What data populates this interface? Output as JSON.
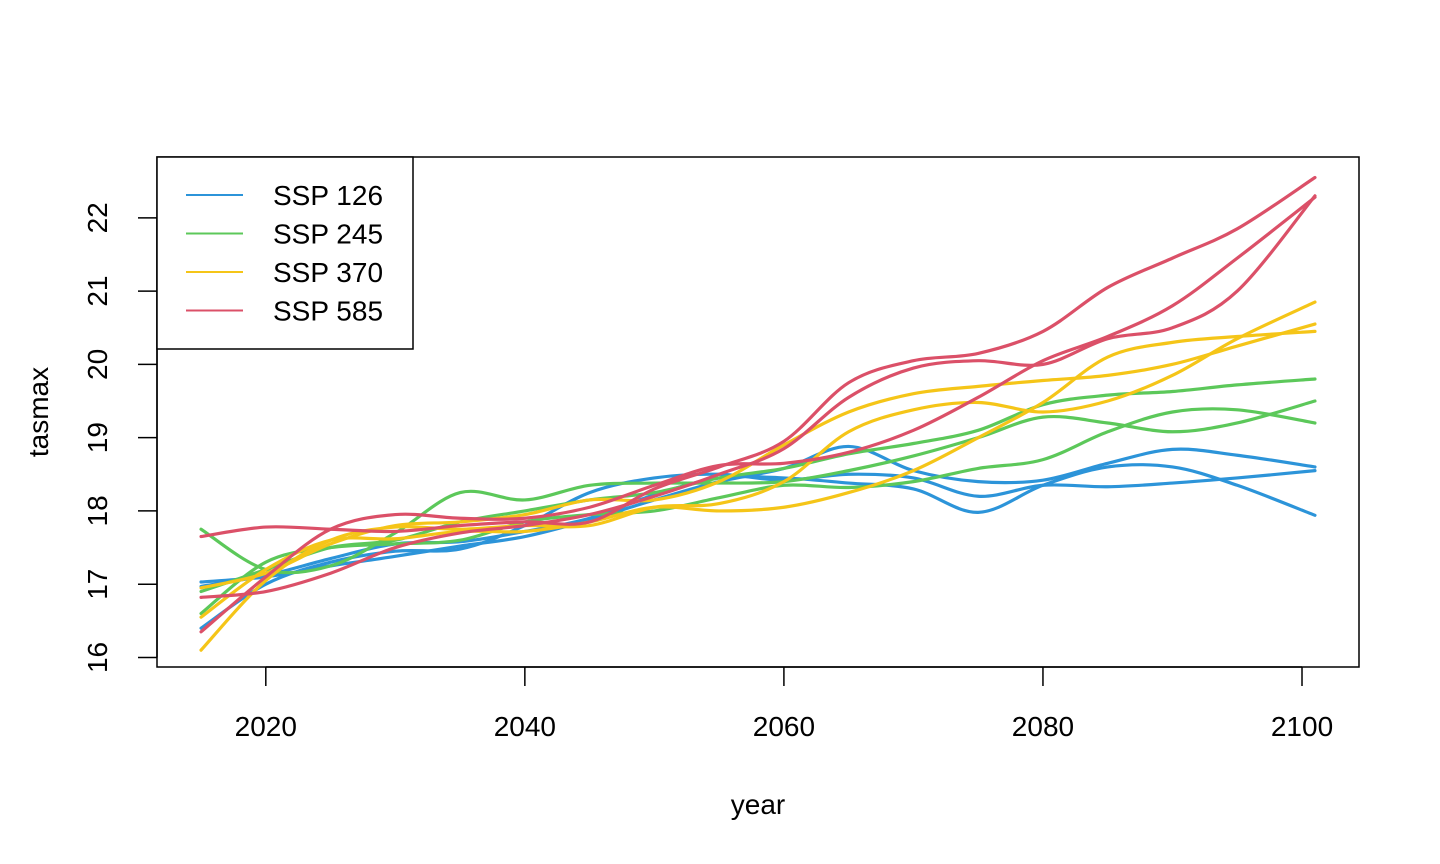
{
  "chart_data": {
    "type": "line",
    "title": "",
    "xlabel": "year",
    "ylabel": "tasmax",
    "xlim": [
      2011.6,
      2104.4
    ],
    "ylim": [
      15.87,
      22.83
    ],
    "x_ticks": [
      2020,
      2040,
      2060,
      2080,
      2100
    ],
    "y_ticks": [
      16,
      17,
      18,
      19,
      20,
      21,
      22
    ],
    "grid": false,
    "legend": {
      "position": "top-left",
      "entries": [
        {
          "label": "SSP 126",
          "color": "#2c94d9"
        },
        {
          "label": "SSP 245",
          "color": "#5cc85a"
        },
        {
          "label": "SSP 370",
          "color": "#f5c518"
        },
        {
          "label": "SSP 585",
          "color": "#db5068"
        }
      ]
    },
    "x": [
      2015,
      2020,
      2025,
      2030,
      2035,
      2040,
      2045,
      2050,
      2055,
      2060,
      2065,
      2070,
      2075,
      2080,
      2085,
      2090,
      2095,
      2101
    ],
    "series": [
      {
        "group": "SSP 126",
        "color": "#2c94d9",
        "values": [
          17.03,
          17.1,
          17.25,
          17.38,
          17.52,
          17.65,
          17.88,
          18.15,
          18.4,
          18.58,
          18.88,
          18.55,
          18.4,
          18.42,
          18.65,
          18.84,
          18.76,
          18.6
        ]
      },
      {
        "group": "SSP 126",
        "color": "#2c94d9",
        "values": [
          16.97,
          17.12,
          17.35,
          17.55,
          17.58,
          17.72,
          17.9,
          18.22,
          18.45,
          18.45,
          18.38,
          18.3,
          17.98,
          18.35,
          18.6,
          18.6,
          18.35,
          17.94
        ]
      },
      {
        "group": "SSP 126",
        "color": "#2c94d9",
        "values": [
          16.4,
          17.0,
          17.3,
          17.45,
          17.48,
          17.8,
          18.25,
          18.45,
          18.5,
          18.42,
          18.5,
          18.45,
          18.2,
          18.35,
          18.33,
          18.38,
          18.45,
          18.55
        ]
      },
      {
        "group": "SSP 245",
        "color": "#5cc85a",
        "values": [
          17.75,
          17.2,
          17.25,
          17.7,
          18.25,
          18.15,
          18.35,
          18.38,
          18.38,
          18.4,
          18.55,
          18.75,
          19.0,
          19.28,
          19.2,
          19.08,
          19.2,
          19.5
        ]
      },
      {
        "group": "SSP 245",
        "color": "#5cc85a",
        "values": [
          16.9,
          17.2,
          17.5,
          17.6,
          17.85,
          18.0,
          18.15,
          18.25,
          18.45,
          18.58,
          18.78,
          18.92,
          19.1,
          19.45,
          19.58,
          19.63,
          19.72,
          19.8
        ]
      },
      {
        "group": "SSP 245",
        "color": "#5cc85a",
        "values": [
          16.6,
          17.3,
          17.5,
          17.55,
          17.6,
          17.85,
          17.95,
          18.0,
          18.18,
          18.35,
          18.32,
          18.4,
          18.58,
          18.7,
          19.08,
          19.35,
          19.38,
          19.2
        ]
      },
      {
        "group": "SSP 370",
        "color": "#f5c518",
        "values": [
          16.1,
          17.05,
          17.6,
          17.78,
          17.75,
          17.8,
          17.8,
          18.05,
          18.1,
          18.4,
          19.08,
          19.38,
          19.48,
          19.35,
          19.5,
          19.85,
          20.35,
          20.85
        ]
      },
      {
        "group": "SSP 370",
        "color": "#f5c518",
        "values": [
          16.95,
          17.15,
          17.55,
          17.8,
          17.85,
          17.95,
          18.15,
          18.15,
          18.4,
          18.9,
          19.35,
          19.6,
          19.7,
          19.78,
          19.85,
          20.0,
          20.25,
          20.55
        ]
      },
      {
        "group": "SSP 370",
        "color": "#f5c518",
        "values": [
          16.55,
          17.2,
          17.6,
          17.62,
          17.72,
          17.72,
          17.85,
          18.05,
          18.0,
          18.05,
          18.25,
          18.55,
          19.0,
          19.48,
          20.1,
          20.3,
          20.38,
          20.45
        ]
      },
      {
        "group": "SSP 585",
        "color": "#db5068",
        "values": [
          17.65,
          17.78,
          17.75,
          17.72,
          17.8,
          17.85,
          17.85,
          18.3,
          18.6,
          18.95,
          19.75,
          20.05,
          20.15,
          20.45,
          21.05,
          21.45,
          21.85,
          22.55
        ]
      },
      {
        "group": "SSP 585",
        "color": "#db5068",
        "values": [
          16.82,
          16.9,
          17.15,
          17.5,
          17.7,
          17.8,
          17.95,
          18.2,
          18.5,
          18.85,
          19.55,
          19.95,
          20.05,
          20.0,
          20.35,
          20.5,
          21.0,
          22.3
        ]
      },
      {
        "group": "SSP 585",
        "color": "#db5068",
        "values": [
          16.35,
          17.1,
          17.75,
          17.95,
          17.9,
          17.9,
          18.05,
          18.35,
          18.62,
          18.65,
          18.8,
          19.1,
          19.55,
          20.05,
          20.38,
          20.8,
          21.45,
          22.28
        ]
      }
    ]
  }
}
